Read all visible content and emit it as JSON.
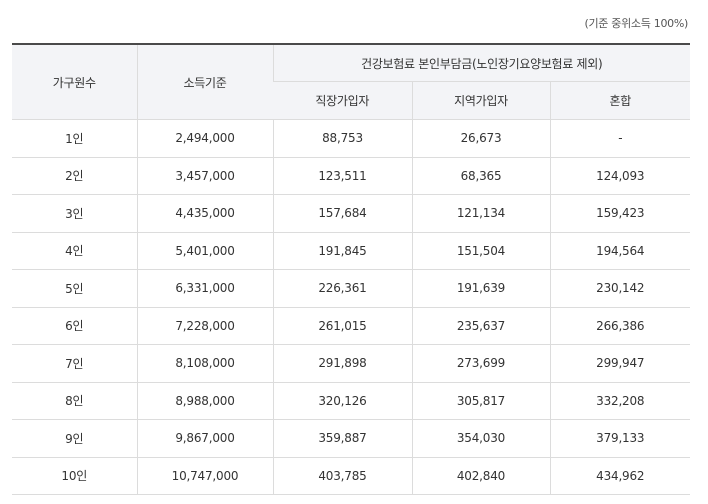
{
  "note": "(기준 중위소득 100%)",
  "headers": {
    "household": "가구원수",
    "income": "소득기준",
    "premium_group": "건강보험료 본인부담금(노인장기요양보험료 제외)",
    "employee": "직장가입자",
    "regional": "지역가입자",
    "mixed": "혼합"
  },
  "rows": [
    [
      "1인",
      "2,494,000",
      "88,753",
      "26,673",
      "-"
    ],
    [
      "2인",
      "3,457,000",
      "123,511",
      "68,365",
      "124,093"
    ],
    [
      "3인",
      "4,435,000",
      "157,684",
      "121,134",
      "159,423"
    ],
    [
      "4인",
      "5,401,000",
      "191,845",
      "151,504",
      "194,564"
    ],
    [
      "5인",
      "6,331,000",
      "226,361",
      "191,639",
      "230,142"
    ],
    [
      "6인",
      "7,228,000",
      "261,015",
      "235,637",
      "266,386"
    ],
    [
      "7인",
      "8,108,000",
      "291,898",
      "273,699",
      "299,947"
    ],
    [
      "8인",
      "8,988,000",
      "320,126",
      "305,817",
      "332,208"
    ],
    [
      "9인",
      "9,867,000",
      "359,887",
      "354,030",
      "379,133"
    ],
    [
      "10인",
      "10,747,000",
      "403,785",
      "402,840",
      "434,962"
    ]
  ]
}
